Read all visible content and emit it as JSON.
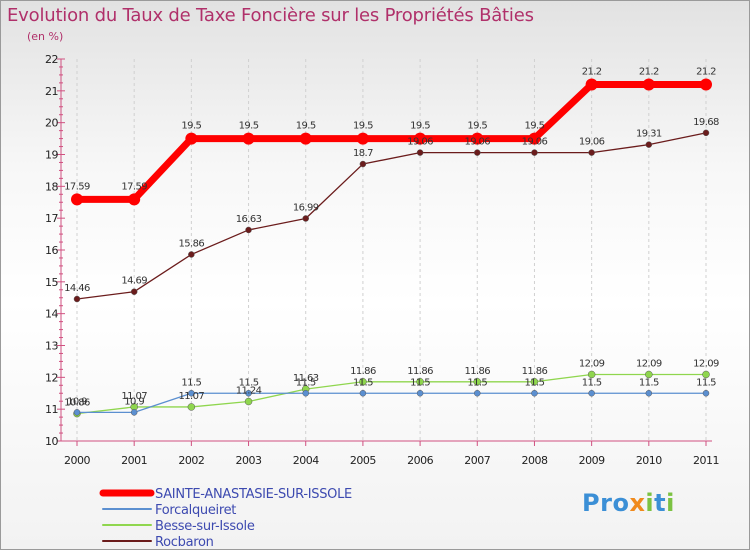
{
  "header": {
    "title": "Evolution du Taux de Taxe Foncière sur les Propriétés Bâties",
    "subtitle": "(en %)"
  },
  "logo": {
    "text": "Proxiti",
    "letters": [
      "P",
      "r",
      "o",
      "x",
      "i",
      "t",
      "i"
    ],
    "colors": [
      "#3b8fd6",
      "#3b8fd6",
      "#3b8fd6",
      "#f08a1c",
      "#7cc242",
      "#3b8fd6",
      "#7cc242"
    ]
  },
  "chart_data": {
    "type": "line",
    "title": "Evolution du Taux de Taxe Foncière sur les Propriétés Bâties",
    "ylabel": "(en %)",
    "xlabel": "",
    "ylim": [
      10,
      22
    ],
    "yticks": [
      10,
      11,
      12,
      13,
      14,
      15,
      16,
      17,
      18,
      19,
      20,
      21,
      22
    ],
    "grid": "dashed vertical",
    "categories": [
      "2000",
      "2001",
      "2002",
      "2003",
      "2004",
      "2005",
      "2006",
      "2007",
      "2008",
      "2009",
      "2010",
      "2011"
    ],
    "series": [
      {
        "name": "Rocbaron",
        "color": "#6b1c1c",
        "width": 1.3,
        "marker": 3,
        "values": [
          14.46,
          14.69,
          15.86,
          16.63,
          16.99,
          18.7,
          19.06,
          19.06,
          19.06,
          19.06,
          19.31,
          19.68
        ],
        "labels": [
          "14.46",
          "14.69",
          "15.86",
          "16.63",
          "16.99",
          "18.7",
          "19.06",
          "19.06",
          "19.06",
          "19.06",
          "19.31",
          "19.68"
        ]
      },
      {
        "name": "Besse-sur-Issole",
        "color": "#8fd64e",
        "width": 1.3,
        "marker": 3.5,
        "values": [
          10.86,
          11.07,
          11.07,
          11.24,
          11.63,
          11.86,
          11.86,
          11.86,
          11.86,
          12.09,
          12.09,
          12.09
        ],
        "labels": [
          "10.86",
          "11.07",
          "11.07",
          "11.24",
          "11.63",
          "11.86",
          "11.86",
          "11.86",
          "11.86",
          "12.09",
          "12.09",
          "12.09"
        ]
      },
      {
        "name": "Forcalqueiret",
        "color": "#5b8fd0",
        "width": 1.3,
        "marker": 3,
        "values": [
          10.9,
          10.9,
          11.5,
          11.5,
          11.5,
          11.5,
          11.5,
          11.5,
          11.5,
          11.5,
          11.5,
          11.5
        ],
        "labels": [
          "10.9",
          "10.9",
          "11.5",
          "11.5",
          "11.5",
          "11.5",
          "11.5",
          "11.5",
          "11.5",
          "11.5",
          "11.5",
          "11.5"
        ]
      },
      {
        "name": "SAINTE-ANASTASIE-SUR-ISSOLE",
        "color": "#ff0000",
        "width": 7,
        "marker": 6,
        "values": [
          17.59,
          17.59,
          19.5,
          19.5,
          19.5,
          19.5,
          19.5,
          19.5,
          19.5,
          21.2,
          21.2,
          21.2
        ],
        "labels": [
          "17.59",
          "17.59",
          "19.5",
          "19.5",
          "19.5",
          "19.5",
          "19.5",
          "19.5",
          "19.5",
          "21.2",
          "21.2",
          "21.2"
        ]
      }
    ],
    "legend": [
      {
        "name": "SAINTE-ANASTASIE-SUR-ISSOLE",
        "color": "#ff0000",
        "width": 7
      },
      {
        "name": "Forcalqueiret",
        "color": "#5b8fd0",
        "width": 2
      },
      {
        "name": "Besse-sur-Issole",
        "color": "#8fd64e",
        "width": 2
      },
      {
        "name": "Rocbaron",
        "color": "#6b1c1c",
        "width": 2
      }
    ],
    "legend_position": "bottom-left"
  }
}
